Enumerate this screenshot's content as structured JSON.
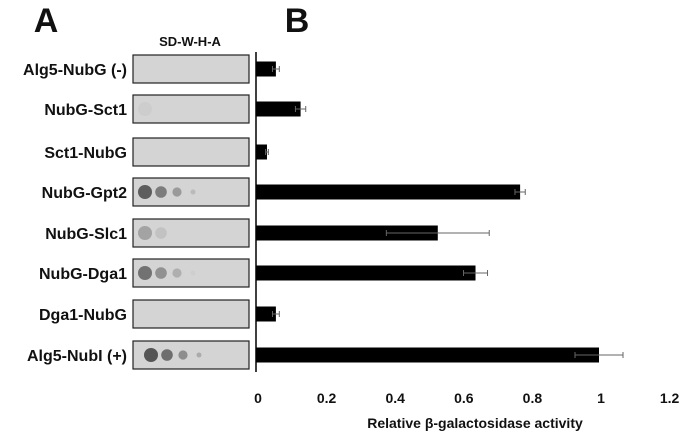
{
  "panels": {
    "a": "A",
    "b": "B"
  },
  "plate_header": "SD-W-H-A",
  "plate_growth": [
    0,
    0.05,
    0,
    0.85,
    0.35,
    0.7,
    0,
    0.95
  ],
  "chart_data": {
    "type": "bar",
    "orientation": "horizontal",
    "categories": [
      "Alg5-NubG (-)",
      "NubG-Sct1",
      "Sct1-NubG",
      "NubG-Gpt2",
      "NubG-Slc1",
      "NubG-Dga1",
      "Dga1-NubG",
      "Alg5-NubI (+)"
    ],
    "values": [
      0.058,
      0.13,
      0.032,
      0.77,
      0.53,
      0.64,
      0.058,
      1.0
    ],
    "errors": [
      0.01,
      0.015,
      0.004,
      0.015,
      0.15,
      0.035,
      0.01,
      0.07
    ],
    "xlabel": "Relative β-galactosidase activity",
    "xlim": [
      0,
      1.2
    ],
    "xticks": [
      "0",
      "0.2",
      "0.4",
      "0.6",
      "0.8",
      "1",
      "1.2"
    ],
    "grid": false,
    "bar_color": "#000000",
    "error_color": "#666666"
  }
}
